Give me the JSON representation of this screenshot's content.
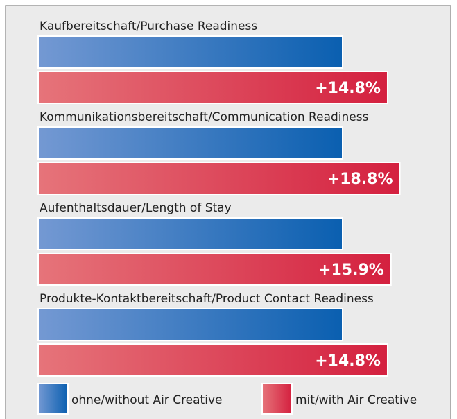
{
  "chart_data": {
    "type": "bar",
    "categories": [
      "Kaufbereitschaft/Purchase Readiness",
      "Kommunikationsbereitschaft/Communication Readiness",
      "Aufenthaltsdauer/Length of Stay",
      "Produkte-Kontaktbereitschaft/Product Contact Readiness"
    ],
    "series": [
      {
        "name": "ohne/without Air Creative",
        "color": "#0a5fb0",
        "values": [
          0,
          0,
          0,
          0
        ]
      },
      {
        "name": "mit/with Air Creative",
        "color": "#d4203f",
        "values": [
          14.8,
          18.8,
          15.9,
          14.8
        ],
        "value_labels": [
          "+14.8%",
          "+18.8%",
          "+15.9%",
          "+14.8%"
        ]
      }
    ]
  }
}
